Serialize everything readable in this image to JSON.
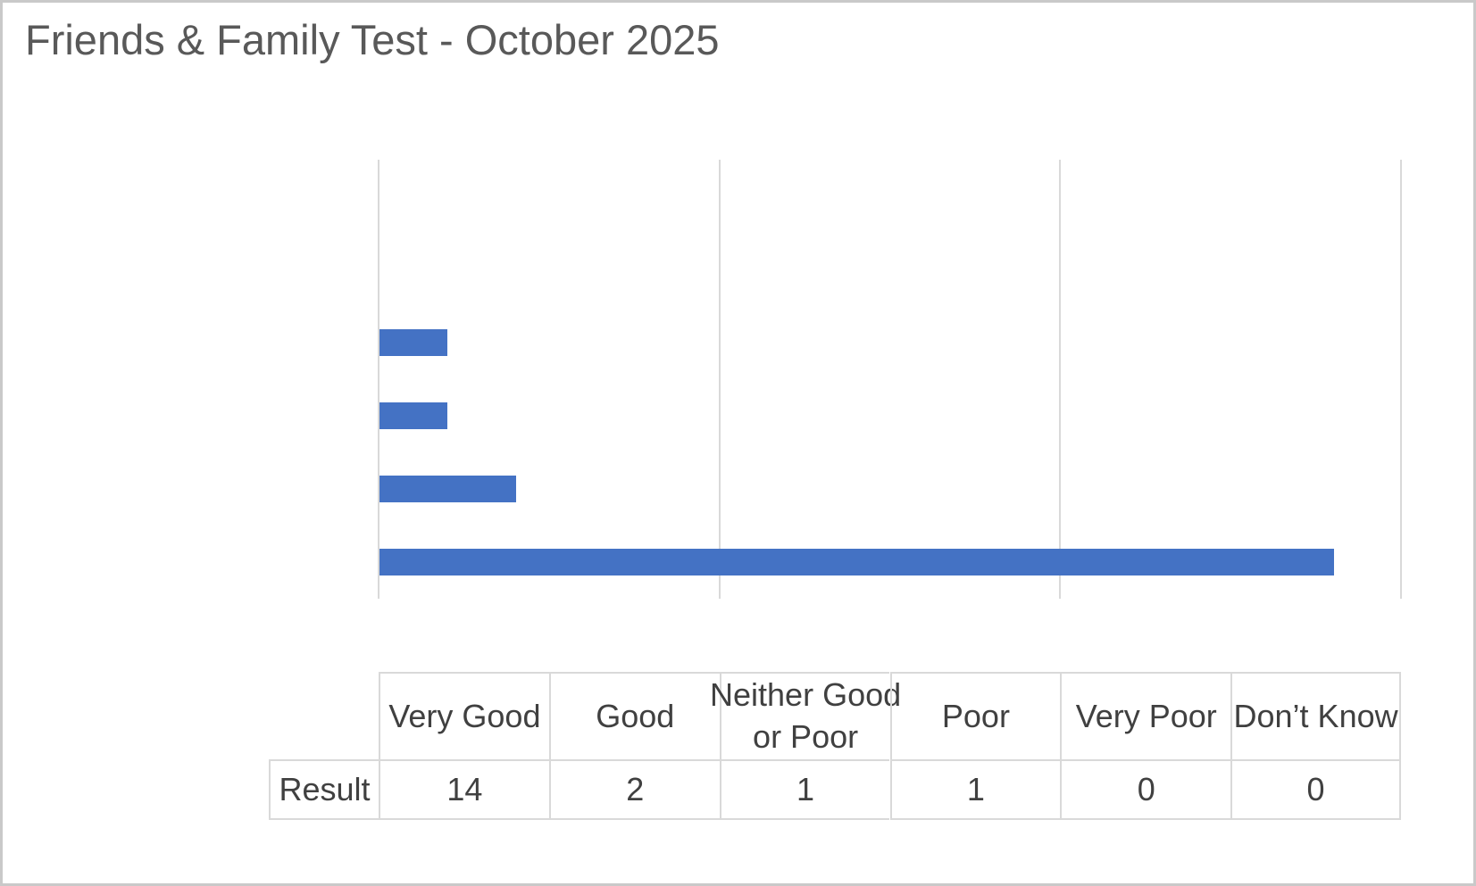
{
  "chart_data": {
    "type": "bar",
    "orientation": "horizontal",
    "title": "Friends & Family Test - October 2025",
    "categories": [
      "Don’t Know",
      "Very Poor",
      "Poor",
      "Neither Good or Poor",
      "Good",
      "Very Good"
    ],
    "values": [
      0,
      0,
      1,
      1,
      2,
      14
    ],
    "series_name": "Result",
    "xlabel": "",
    "ylabel": "",
    "xlim": [
      0,
      15
    ],
    "xticks": [
      0,
      5,
      10,
      15
    ],
    "grid": true,
    "legend": false,
    "bar_color": "#4472c4",
    "gridline_color": "#d9d9d9",
    "label_color": "#404040",
    "title_color": "#595959",
    "data_table": {
      "row_label": "Result",
      "columns": [
        "Very Good",
        "Good",
        "Neither Good or Poor",
        "Poor",
        "Very Poor",
        "Don’t Know"
      ],
      "values": [
        14,
        2,
        1,
        1,
        0,
        0
      ]
    }
  }
}
